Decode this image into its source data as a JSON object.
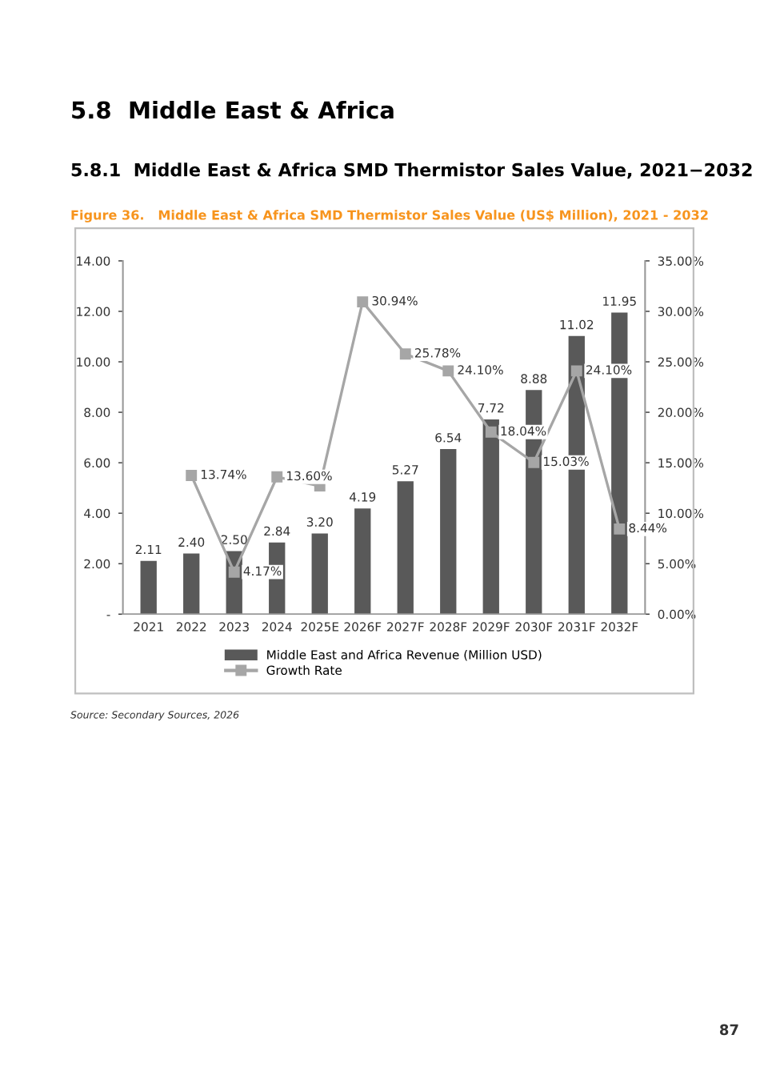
{
  "chart_data": {
    "type": "bar",
    "title": "5.8  Middle East & Africa",
    "subtitle": "5.8.1  Middle East & Africa SMD Thermistor Sales Value, 2021−2032",
    "annotations": [
      "Figure 36.   Middle East & Africa SMD Thermistor Sales Value (US$ Million), 2021 - 2032",
      "Source: Secondary Sources, 2026",
      "87"
    ],
    "categories": [
      "2021",
      "2022",
      "2023",
      "2024",
      "2025E",
      "2026F",
      "2027F",
      "2028F",
      "2029F",
      "2030F",
      "2031F",
      "2032F"
    ],
    "series": [
      {
        "name": "Middle East and Africa Revenue (Million USD)",
        "color": "#595959",
        "values": [
          2.11,
          2.4,
          2.5,
          2.84,
          3.2,
          4.19,
          5.27,
          6.54,
          7.72,
          8.88,
          11.02,
          11.95
        ],
        "value_labels": [
          "2.11",
          "2.40",
          "2.50",
          "2.84",
          "3.20",
          "4.19",
          "5.27",
          "6.54",
          "7.72",
          "8.88",
          "11.02",
          "11.95"
        ]
      },
      {
        "name": "Growth Rate",
        "type": "line",
        "axis": "y2",
        "color": "#a6a6a6",
        "marker": "square",
        "values": [
          null,
          13.74,
          4.17,
          13.6,
          12.7,
          30.94,
          25.78,
          24.1,
          18.04,
          15.03,
          24.1,
          8.44
        ],
        "value_labels": [
          null,
          "13.74%",
          "4.17%",
          "13.60%",
          null,
          "30.94%",
          "25.78%",
          "24.10%",
          "18.04%",
          "15.03%",
          "24.10%",
          "8.44%"
        ]
      }
    ],
    "ylim": [
      0,
      14
    ],
    "yticks": [
      {
        "value": 0,
        "label": "-"
      },
      {
        "value": 2,
        "label": "2.00"
      },
      {
        "value": 4,
        "label": "4.00"
      },
      {
        "value": 6,
        "label": "6.00"
      },
      {
        "value": 8,
        "label": "8.00"
      },
      {
        "value": 10,
        "label": "10.00"
      },
      {
        "value": 12,
        "label": "12.00"
      },
      {
        "value": 14,
        "label": "14.00"
      }
    ],
    "y2lim": [
      0,
      35
    ],
    "y2ticks": [
      {
        "value": 0,
        "label": "0.00%"
      },
      {
        "value": 5,
        "label": "5.00%"
      },
      {
        "value": 10,
        "label": "10.00%"
      },
      {
        "value": 15,
        "label": "15.00%"
      },
      {
        "value": 20,
        "label": "20.00%"
      },
      {
        "value": 25,
        "label": "25.00%"
      },
      {
        "value": 30,
        "label": "30.00%"
      },
      {
        "value": 35,
        "label": "35.00%"
      }
    ],
    "grid": false,
    "legend": "bottom"
  }
}
